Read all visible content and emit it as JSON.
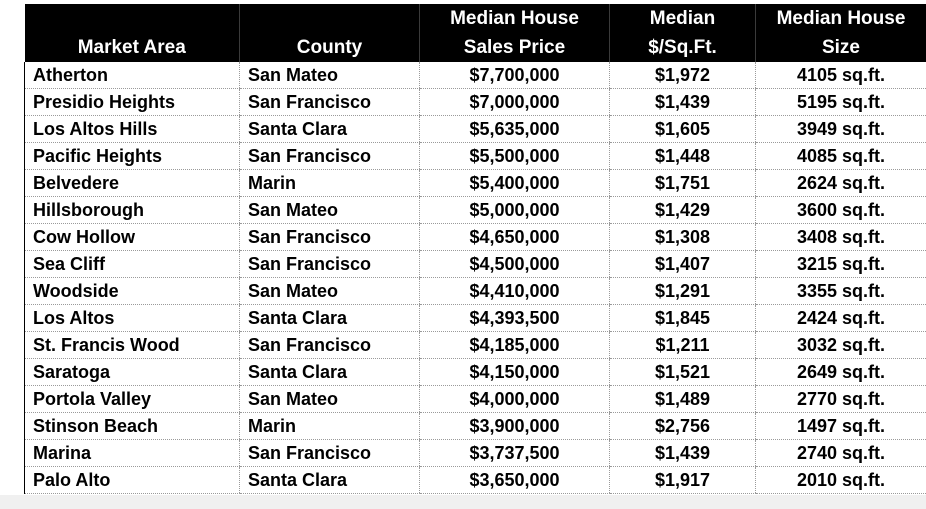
{
  "table": {
    "headers": {
      "market_area": [
        "",
        "Market Area"
      ],
      "county": [
        "",
        "County"
      ],
      "sales_price": [
        "Median House",
        "Sales Price"
      ],
      "per_sqft": [
        "Median",
        "$/Sq.Ft."
      ],
      "size": [
        "Median House",
        "Size"
      ]
    },
    "rows": [
      [
        "Atherton",
        "San Mateo",
        "$7,700,000",
        "$1,972",
        "4105 sq.ft."
      ],
      [
        "Presidio Heights",
        "San Francisco",
        "$7,000,000",
        "$1,439",
        "5195 sq.ft."
      ],
      [
        "Los Altos Hills",
        "Santa Clara",
        "$5,635,000",
        "$1,605",
        "3949 sq.ft."
      ],
      [
        "Pacific Heights",
        "San Francisco",
        "$5,500,000",
        "$1,448",
        "4085 sq.ft."
      ],
      [
        "Belvedere",
        "Marin",
        "$5,400,000",
        "$1,751",
        "2624 sq.ft."
      ],
      [
        "Hillsborough",
        "San Mateo",
        "$5,000,000",
        "$1,429",
        "3600 sq.ft."
      ],
      [
        "Cow Hollow",
        "San Francisco",
        "$4,650,000",
        "$1,308",
        "3408 sq.ft."
      ],
      [
        "Sea Cliff",
        "San Francisco",
        "$4,500,000",
        "$1,407",
        "3215 sq.ft."
      ],
      [
        "Woodside",
        "San Mateo",
        "$4,410,000",
        "$1,291",
        "3355 sq.ft."
      ],
      [
        "Los Altos",
        "Santa Clara",
        "$4,393,500",
        "$1,845",
        "2424 sq.ft."
      ],
      [
        "St. Francis Wood",
        "San Francisco",
        "$4,185,000",
        "$1,211",
        "3032 sq.ft."
      ],
      [
        "Saratoga",
        "Santa Clara",
        "$4,150,000",
        "$1,521",
        "2649 sq.ft."
      ],
      [
        "Portola Valley",
        "San Mateo",
        "$4,000,000",
        "$1,489",
        "2770 sq.ft."
      ],
      [
        "Stinson Beach",
        "Marin",
        "$3,900,000",
        "$2,756",
        "1497 sq.ft."
      ],
      [
        "Marina",
        "San Francisco",
        "$3,737,500",
        "$1,439",
        "2740 sq.ft."
      ],
      [
        "Palo Alto",
        "Santa Clara",
        "$3,650,000",
        "$1,917",
        "2010 sq.ft."
      ]
    ]
  }
}
